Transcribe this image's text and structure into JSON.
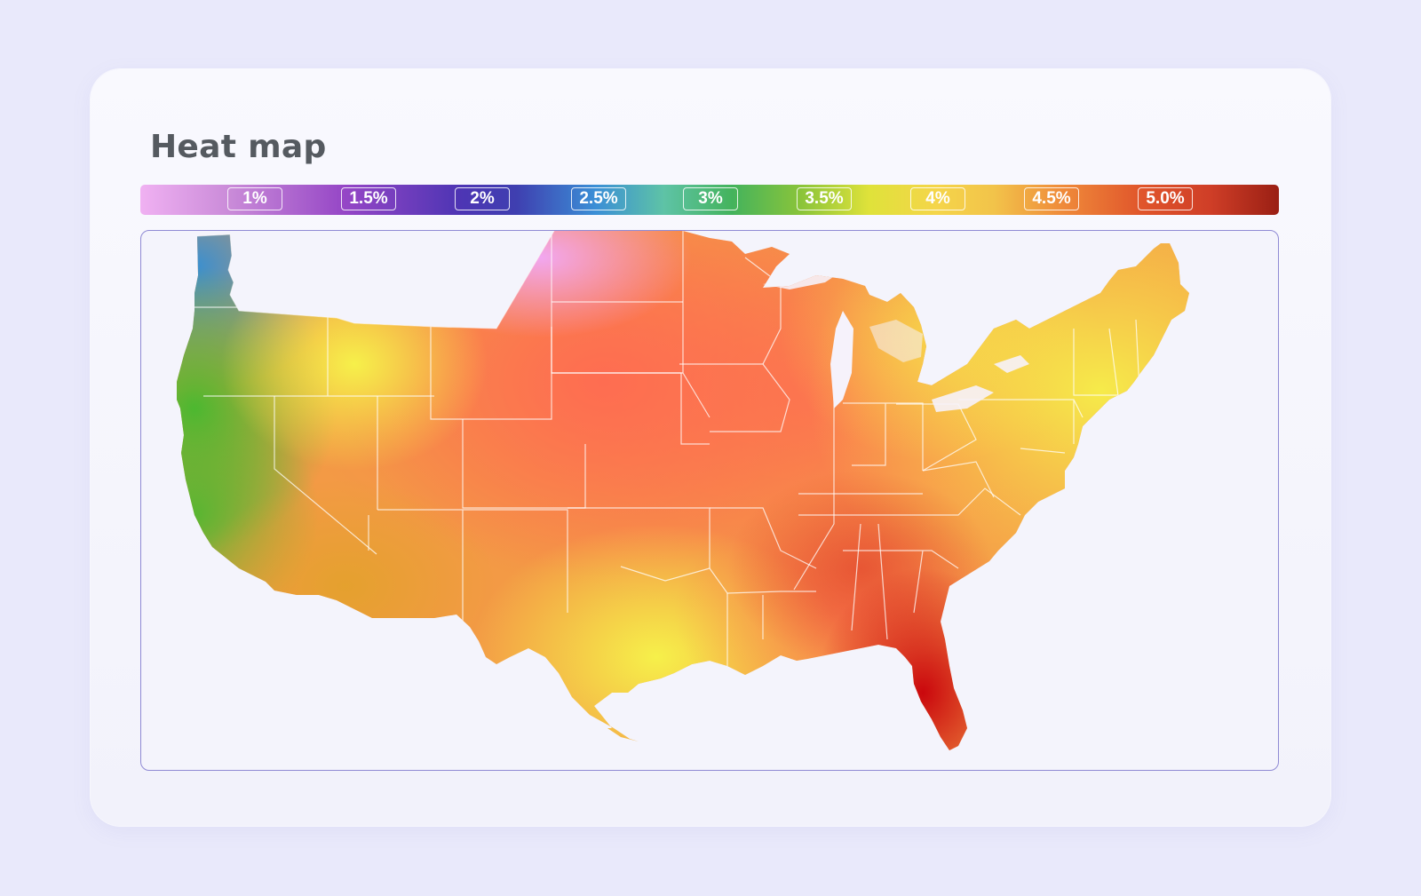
{
  "title": "Heat map",
  "legend": {
    "ticks": [
      "1%",
      "1.5%",
      "2%",
      "2.5%",
      "3%",
      "3.5%",
      "4%",
      "4.5%",
      "5.0%"
    ]
  },
  "map": {
    "region": "Contiguous United States",
    "type": "continuous heat map with state boundaries",
    "colors": {
      "pink": "#f2a7f0",
      "blue": "#3a8fd0",
      "green": "#4cb830",
      "yellow": "#f6f04a",
      "orange": "#f58a45",
      "red": "#ff6a52",
      "deep_red": "#c8000a"
    }
  }
}
